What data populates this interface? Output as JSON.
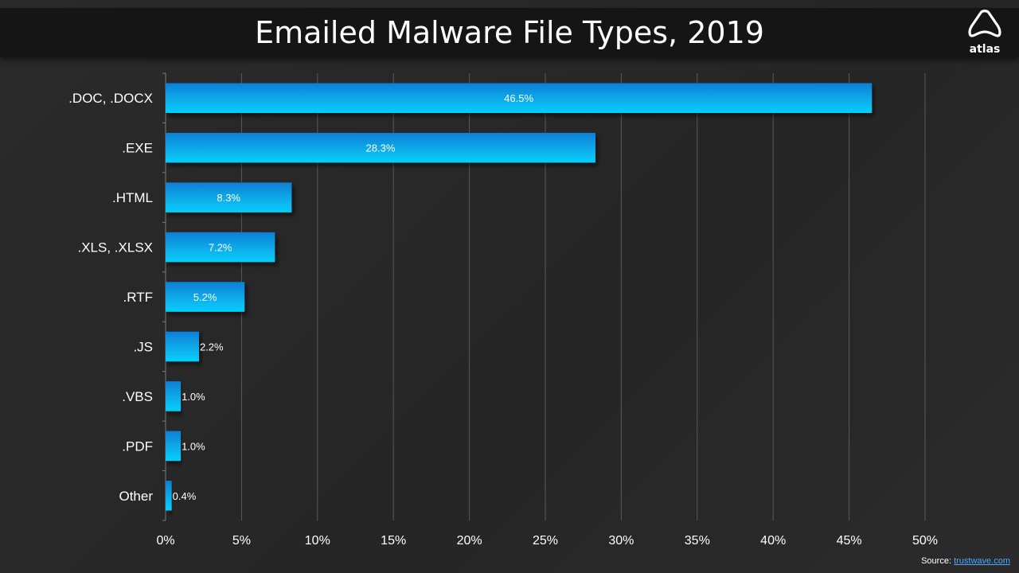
{
  "title": "Emailed Malware File Types, 2019",
  "logo": {
    "name": "atlas",
    "icon": "atlas-logo-icon"
  },
  "source": {
    "label": "Source:",
    "link_text": "trustwave.com"
  },
  "colors": {
    "bar_top": "#0a7fd6",
    "bar_bottom": "#06d0fb",
    "grid": "#5a5a5a",
    "text": "#ffffff",
    "link": "#4aa8ff"
  },
  "chart_data": {
    "type": "bar",
    "orientation": "horizontal",
    "title": "Emailed Malware File Types, 2019",
    "categories": [
      ".DOC, .DOCX",
      ".EXE",
      ".HTML",
      ".XLS, .XLSX",
      ".RTF",
      ".JS",
      ".VBS",
      ".PDF",
      "Other"
    ],
    "values": [
      46.5,
      28.3,
      8.3,
      7.2,
      5.2,
      2.2,
      1.0,
      1.0,
      0.4
    ],
    "data_labels": [
      "46.5%",
      "28.3%",
      "8.3%",
      "7.2%",
      "5.2%",
      "2.2%",
      "1.0%",
      "1.0%",
      "0.4%"
    ],
    "xlim": [
      0,
      50
    ],
    "x_ticks": [
      0,
      5,
      10,
      15,
      20,
      25,
      30,
      35,
      40,
      45,
      50
    ],
    "x_tick_labels": [
      "0%",
      "5%",
      "10%",
      "15%",
      "20%",
      "25%",
      "30%",
      "35%",
      "40%",
      "45%",
      "50%"
    ],
    "xlabel": "",
    "ylabel": "",
    "grid": "vertical",
    "legend": "none"
  }
}
